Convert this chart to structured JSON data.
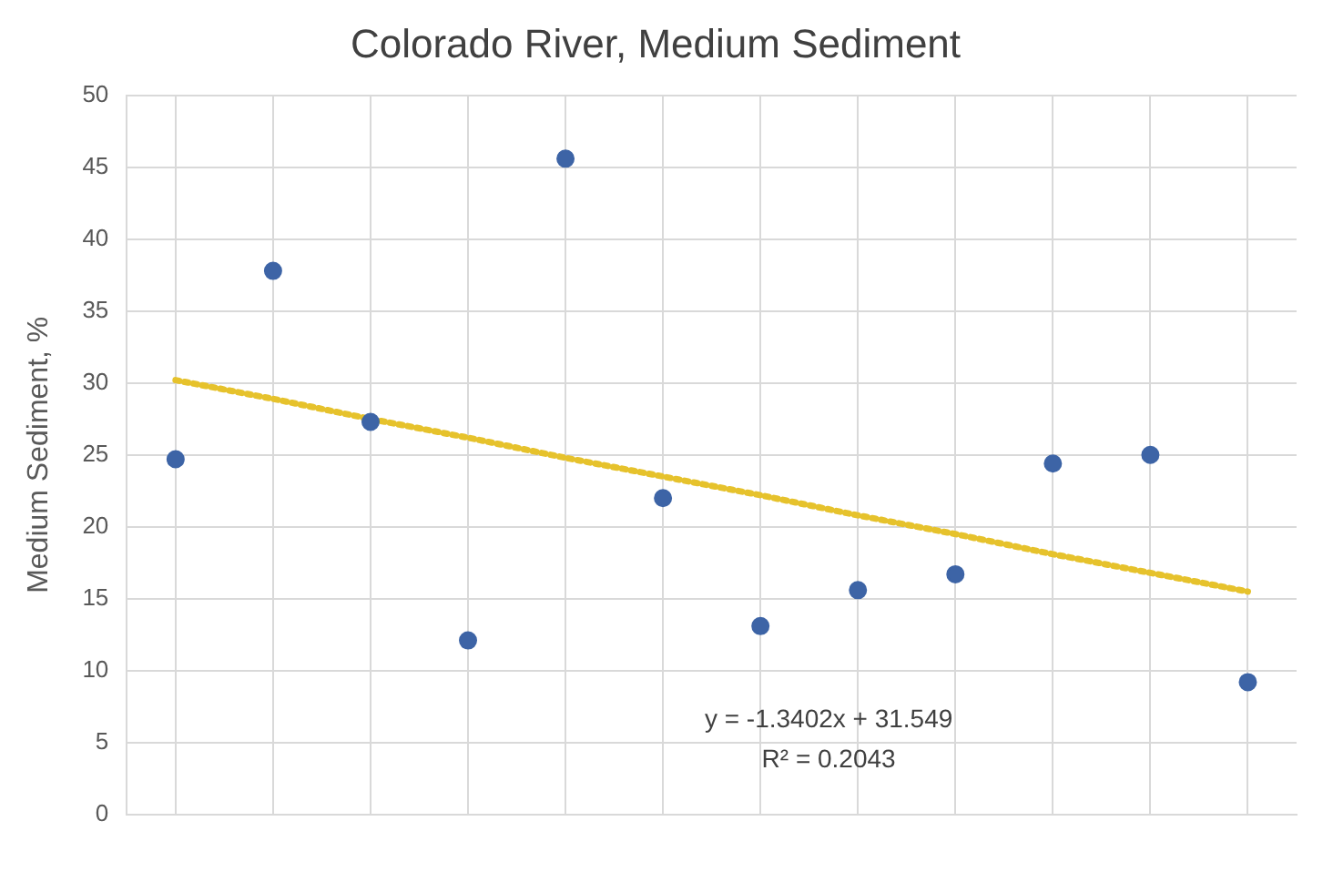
{
  "chart_data": {
    "type": "scatter",
    "title": "Colorado River, Medium Sediment",
    "ylabel": "Medium Sediment, %",
    "categories": [
      null,
      null,
      null,
      null,
      null,
      null,
      null,
      null,
      null,
      null,
      null,
      null
    ],
    "ylim": [
      0,
      50
    ],
    "yticks": [
      0,
      5,
      10,
      15,
      20,
      25,
      30,
      35,
      40,
      45,
      50
    ],
    "grid": true,
    "marker": "circle",
    "series": [
      {
        "color": "#3d64a6",
        "values": [
          24.7,
          37.8,
          27.3,
          12.1,
          45.6,
          22.0,
          13.1,
          15.6,
          16.7,
          24.4,
          25.0,
          9.2
        ]
      },
      {
        "type": "line",
        "values": [
          30.2,
          28.9,
          27.5,
          26.2,
          24.8,
          23.5,
          22.2,
          20.8,
          19.5,
          18.1,
          16.8,
          15.5
        ],
        "color": "#e6c22c",
        "line_style": "dotted",
        "marker": "none"
      }
    ],
    "annotations": [
      "y = -1.3402x + 31.549",
      "R² = 0.2043"
    ]
  }
}
